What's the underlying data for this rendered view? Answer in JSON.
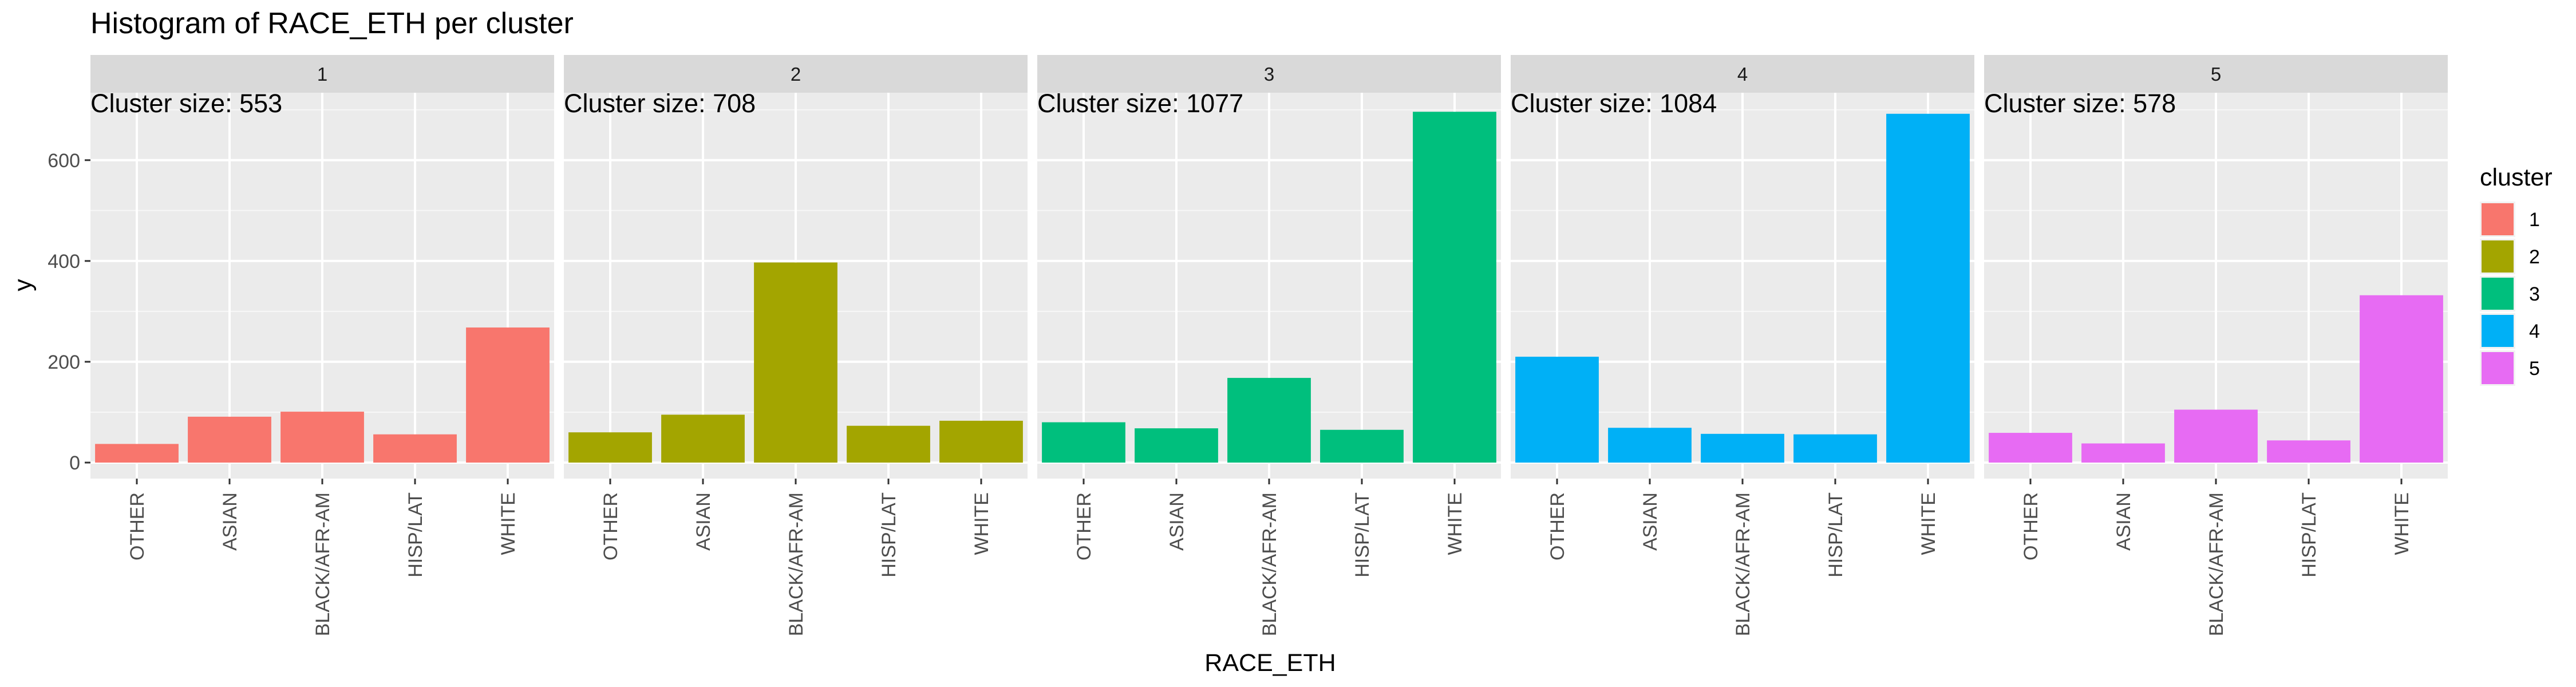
{
  "chart_data": {
    "type": "bar",
    "title": "Histogram of RACE_ETH per cluster",
    "xlabel": "RACE_ETH",
    "ylabel": "y",
    "ylim": [
      0,
      700
    ],
    "yticks": [
      0,
      200,
      400,
      600
    ],
    "grid": true,
    "legend_position": "right",
    "legend_title": "cluster",
    "categories": [
      "OTHER",
      "ASIAN",
      "BLACK/AFR-AM",
      "HISP/LAT",
      "WHITE"
    ],
    "facets": [
      {
        "strip": "1",
        "note": "Cluster size: 553",
        "color": "#F8766D",
        "values": [
          37,
          91,
          101,
          56,
          268
        ]
      },
      {
        "strip": "2",
        "note": "Cluster size: 708",
        "color": "#A3A500",
        "values": [
          60,
          95,
          397,
          73,
          83
        ]
      },
      {
        "strip": "3",
        "note": "Cluster size: 1077",
        "color": "#00BF7D",
        "values": [
          80,
          68,
          168,
          65,
          696
        ]
      },
      {
        "strip": "4",
        "note": "Cluster size: 1084",
        "color": "#00B0F6",
        "values": [
          210,
          69,
          57,
          56,
          692
        ]
      },
      {
        "strip": "5",
        "note": "Cluster size: 578",
        "color": "#E76BF3",
        "values": [
          59,
          38,
          105,
          44,
          332
        ]
      }
    ],
    "legend": [
      {
        "label": "1",
        "color": "#F8766D"
      },
      {
        "label": "2",
        "color": "#A3A500"
      },
      {
        "label": "3",
        "color": "#00BF7D"
      },
      {
        "label": "4",
        "color": "#00B0F6"
      },
      {
        "label": "5",
        "color": "#E76BF3"
      }
    ]
  }
}
